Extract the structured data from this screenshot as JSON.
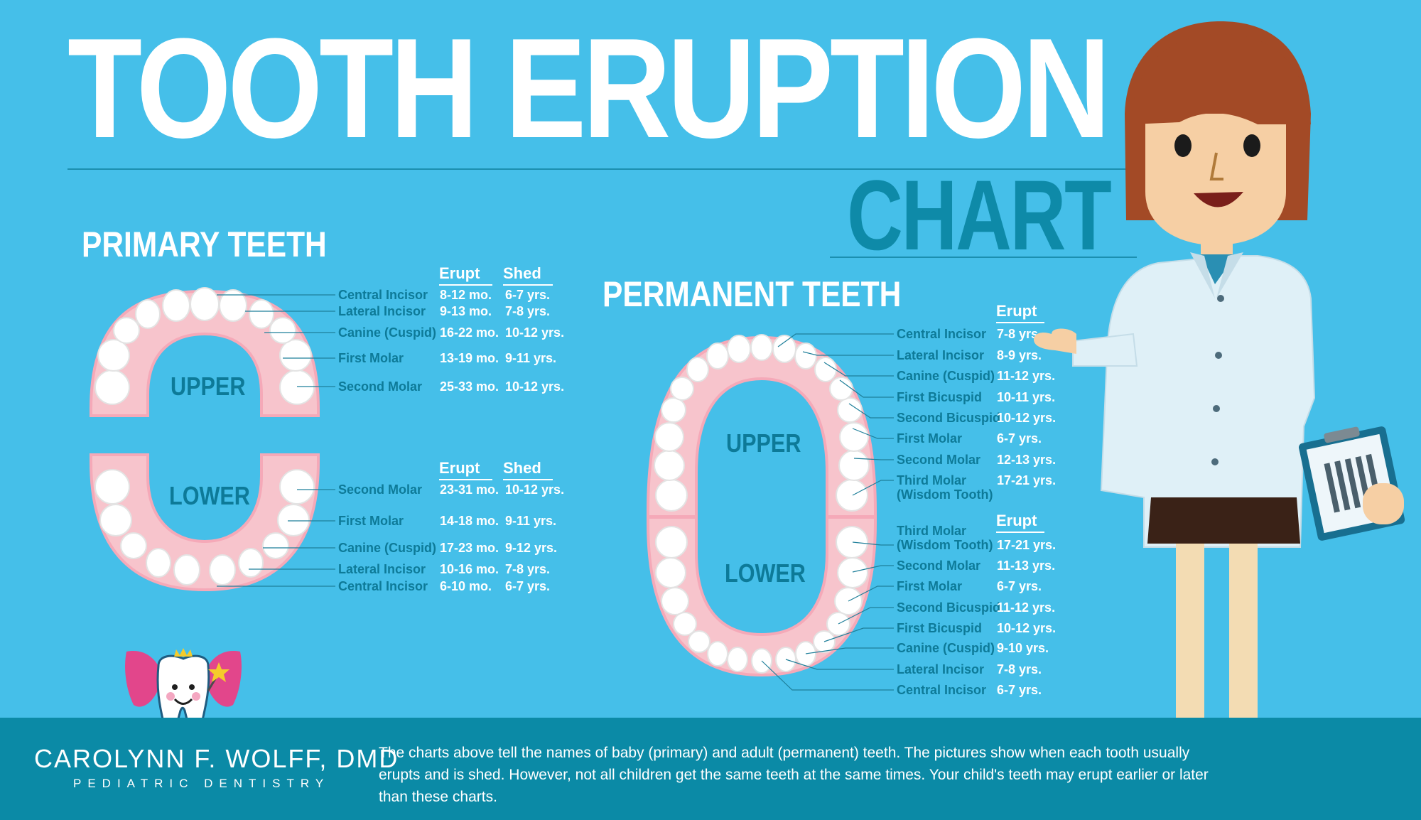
{
  "title": "TOOTH ERUPTION",
  "subtitle": "CHART",
  "primary": {
    "heading": "PRIMARY TEETH",
    "upper_label": "UPPER",
    "lower_label": "LOWER",
    "upper_cols": {
      "erupt": "Erupt",
      "shed": "Shed"
    },
    "lower_cols": {
      "erupt": "Erupt",
      "shed": "Shed"
    },
    "upper": [
      {
        "name": "Central Incisor",
        "erupt": "8-12 mo.",
        "shed": "6-7 yrs."
      },
      {
        "name": "Lateral Incisor",
        "erupt": "9-13 mo.",
        "shed": "7-8 yrs."
      },
      {
        "name": "Canine (Cuspid)",
        "erupt": "16-22 mo.",
        "shed": "10-12 yrs."
      },
      {
        "name": "First Molar",
        "erupt": "13-19 mo.",
        "shed": "9-11 yrs."
      },
      {
        "name": "Second Molar",
        "erupt": "25-33 mo.",
        "shed": "10-12 yrs."
      }
    ],
    "lower": [
      {
        "name": "Second Molar",
        "erupt": "23-31 mo.",
        "shed": "10-12 yrs."
      },
      {
        "name": "First Molar",
        "erupt": "14-18 mo.",
        "shed": "9-11 yrs."
      },
      {
        "name": "Canine (Cuspid)",
        "erupt": "17-23 mo.",
        "shed": "9-12 yrs."
      },
      {
        "name": "Lateral Incisor",
        "erupt": "10-16 mo.",
        "shed": "7-8 yrs."
      },
      {
        "name": "Central Incisor",
        "erupt": "6-10 mo.",
        "shed": "6-7 yrs."
      }
    ]
  },
  "permanent": {
    "heading": "PERMANENT TEETH",
    "upper_label": "UPPER",
    "lower_label": "LOWER",
    "upper_col": "Erupt",
    "lower_col": "Erupt",
    "upper": [
      {
        "name": "Central Incisor",
        "erupt": "7-8 yrs."
      },
      {
        "name": "Lateral Incisor",
        "erupt": "8-9 yrs."
      },
      {
        "name": "Canine (Cuspid)",
        "erupt": "11-12 yrs."
      },
      {
        "name": "First Bicuspid",
        "erupt": "10-11 yrs."
      },
      {
        "name": "Second Bicuspid",
        "erupt": "10-12 yrs."
      },
      {
        "name": "First Molar",
        "erupt": "6-7 yrs."
      },
      {
        "name": "Second Molar",
        "erupt": "12-13 yrs."
      },
      {
        "name": "Third Molar",
        "name2": "(Wisdom Tooth)",
        "erupt": "17-21 yrs."
      }
    ],
    "lower": [
      {
        "name": "Third Molar",
        "name2": "(Wisdom Tooth)",
        "erupt": "17-21 yrs."
      },
      {
        "name": "Second Molar",
        "erupt": "11-13 yrs."
      },
      {
        "name": "First Molar",
        "erupt": "6-7 yrs."
      },
      {
        "name": "Second Bicuspid",
        "erupt": "11-12 yrs."
      },
      {
        "name": "First Bicuspid",
        "erupt": "10-12 yrs."
      },
      {
        "name": "Canine (Cuspid)",
        "erupt": "9-10 yrs."
      },
      {
        "name": "Lateral Incisor",
        "erupt": "7-8 yrs."
      },
      {
        "name": "Central Incisor",
        "erupt": "6-7 yrs."
      }
    ]
  },
  "footer": {
    "brand_name": "CAROLYNN F. WOLFF, DMD",
    "brand_sub": "PEDIATRIC   DENTISTRY",
    "note": "The charts above tell the names of baby (primary) and adult (permanent) teeth. The pictures show when each tooth usually erupts and is shed. However, not all children get the same teeth at the same times. Your child's teeth may erupt earlier or later than these charts."
  },
  "colors": {
    "background": "#45bfe9",
    "footer": "#0b8aa6",
    "label": "#0d7a98",
    "gum": "#f7c4cc"
  },
  "icons": [
    "tooth-fairy-logo-icon",
    "dentist-illustration-icon",
    "clipboard-icon"
  ]
}
